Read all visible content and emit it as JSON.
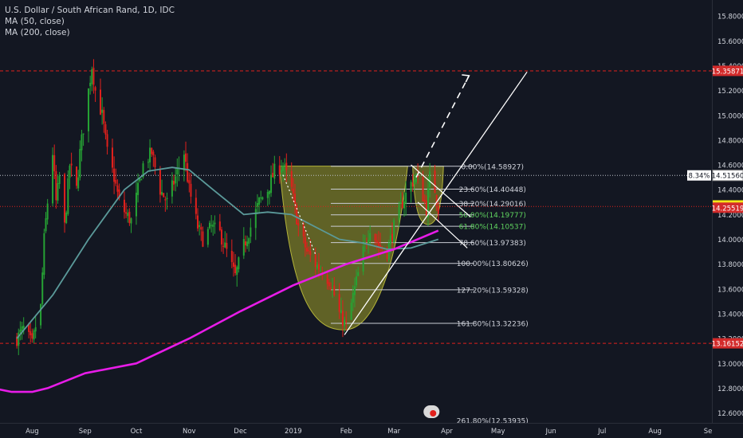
{
  "legend": {
    "symbol": "U.S. Dollar / South African Rand, 1D, IDC",
    "ma50": "MA (50, close)",
    "ma200": "MA (200, close)"
  },
  "colors": {
    "background": "#131722",
    "up": "#26a334",
    "down": "#e0201c",
    "ma50": "#5b9a9a",
    "ma200": "#e81ce8",
    "cup_fill": "#8a8a2a",
    "red_dashed": "#e0201c",
    "text": "#d1d4dc"
  },
  "chart_data": {
    "type": "candlestick",
    "title": "U.S. Dollar / South African Rand, 1D, IDC",
    "ylim": [
      12.52,
      15.93
    ],
    "y_ticks": [
      "15.80000",
      "15.60000",
      "15.40000",
      "15.20000",
      "15.00000",
      "14.80000",
      "14.60000",
      "14.40000",
      "14.20000",
      "14.00000",
      "13.80000",
      "13.60000",
      "13.40000",
      "13.20000",
      "13.00000",
      "12.80000",
      "12.60000"
    ],
    "x_ticks": [
      "Aug",
      "Sep",
      "Oct",
      "Nov",
      "Dec",
      "2019",
      "Feb",
      "Mar",
      "Apr",
      "May",
      "Jun",
      "Jul",
      "Aug",
      "Se"
    ],
    "close_series": [
      [
        "2018-07-23",
        13.2
      ],
      [
        "2018-07-27",
        13.28
      ],
      [
        "2018-08-01",
        13.15
      ],
      [
        "2018-08-03",
        13.3
      ],
      [
        "2018-08-06",
        13.45
      ],
      [
        "2018-08-08",
        14.0
      ],
      [
        "2018-08-10",
        14.3
      ],
      [
        "2018-08-13",
        14.7
      ],
      [
        "2018-08-15",
        14.3
      ],
      [
        "2018-08-17",
        14.5
      ],
      [
        "2018-08-20",
        14.1
      ],
      [
        "2018-08-23",
        14.6
      ],
      [
        "2018-08-27",
        14.4
      ],
      [
        "2018-08-29",
        14.7
      ],
      [
        "2018-09-03",
        15.2
      ],
      [
        "2018-09-05",
        15.4
      ],
      [
        "2018-09-07",
        15.2
      ],
      [
        "2018-09-11",
        15.0
      ],
      [
        "2018-09-14",
        14.7
      ],
      [
        "2018-09-18",
        14.5
      ],
      [
        "2018-09-21",
        14.3
      ],
      [
        "2018-09-25",
        14.2
      ],
      [
        "2018-09-28",
        14.15
      ],
      [
        "2018-10-02",
        14.4
      ],
      [
        "2018-10-05",
        14.6
      ],
      [
        "2018-10-10",
        14.7
      ],
      [
        "2018-10-15",
        14.4
      ],
      [
        "2018-10-19",
        14.3
      ],
      [
        "2018-10-24",
        14.5
      ],
      [
        "2018-10-29",
        14.7
      ],
      [
        "2018-11-01",
        14.4
      ],
      [
        "2018-11-06",
        14.1
      ],
      [
        "2018-11-09",
        14.0
      ],
      [
        "2018-11-14",
        14.1
      ],
      [
        "2018-11-19",
        14.05
      ],
      [
        "2018-11-23",
        13.9
      ],
      [
        "2018-11-28",
        13.7
      ],
      [
        "2018-12-03",
        13.95
      ],
      [
        "2018-12-07",
        14.1
      ],
      [
        "2018-12-12",
        14.3
      ],
      [
        "2018-12-17",
        14.4
      ],
      [
        "2018-12-21",
        14.55
      ],
      [
        "2018-12-26",
        14.6
      ],
      [
        "2018-12-31",
        14.4
      ],
      [
        "2019-01-04",
        14.1
      ],
      [
        "2019-01-09",
        13.9
      ],
      [
        "2019-01-14",
        13.8
      ],
      [
        "2019-01-18",
        13.75
      ],
      [
        "2019-01-23",
        13.65
      ],
      [
        "2019-01-28",
        13.4
      ],
      [
        "2019-02-01",
        13.3
      ],
      [
        "2019-02-06",
        13.6
      ],
      [
        "2019-02-11",
        13.9
      ],
      [
        "2019-02-15",
        14.1
      ],
      [
        "2019-02-20",
        13.95
      ],
      [
        "2019-02-25",
        13.9
      ],
      [
        "2019-03-01",
        14.1
      ],
      [
        "2019-03-06",
        14.3
      ],
      [
        "2019-03-11",
        14.45
      ],
      [
        "2019-03-14",
        14.5
      ],
      [
        "2019-03-18",
        14.35
      ],
      [
        "2019-03-20",
        14.25
      ],
      [
        "2019-03-22",
        14.5
      ],
      [
        "2019-03-25",
        14.4
      ],
      [
        "2019-03-27",
        14.25
      ]
    ],
    "ma50_series": [
      [
        "2018-07-23",
        13.2
      ],
      [
        "2018-08-13",
        13.55
      ],
      [
        "2018-09-03",
        14.0
      ],
      [
        "2018-09-24",
        14.4
      ],
      [
        "2018-10-08",
        14.55
      ],
      [
        "2018-10-22",
        14.58
      ],
      [
        "2018-11-01",
        14.56
      ],
      [
        "2018-11-15",
        14.4
      ],
      [
        "2018-12-03",
        14.2
      ],
      [
        "2018-12-17",
        14.22
      ],
      [
        "2018-12-31",
        14.2
      ],
      [
        "2019-01-14",
        14.1
      ],
      [
        "2019-01-28",
        14.0
      ],
      [
        "2019-02-11",
        13.97
      ],
      [
        "2019-02-25",
        13.92
      ],
      [
        "2019-03-11",
        13.93
      ],
      [
        "2019-03-27",
        14.0
      ]
    ],
    "ma200_series": [
      [
        "2018-07-09",
        12.8
      ],
      [
        "2018-07-20",
        12.77
      ],
      [
        "2018-08-01",
        12.77
      ],
      [
        "2018-08-10",
        12.8
      ],
      [
        "2018-09-01",
        12.92
      ],
      [
        "2018-10-01",
        13.0
      ],
      [
        "2018-11-01",
        13.2
      ],
      [
        "2018-12-01",
        13.42
      ],
      [
        "2019-01-01",
        13.63
      ],
      [
        "2019-02-01",
        13.8
      ],
      [
        "2019-03-01",
        13.92
      ],
      [
        "2019-03-27",
        14.07
      ]
    ],
    "fib_levels": [
      {
        "label": "0.00%(14.58927)",
        "value": 14.58927
      },
      {
        "label": "23.60%(14.40448)",
        "value": 14.40448
      },
      {
        "label": "38.20%(14.29016)",
        "value": 14.29016
      },
      {
        "label": "50.00%(14.19777)",
        "value": 14.19777
      },
      {
        "label": "61.80%(14.10537)",
        "value": 14.10537
      },
      {
        "label": "78.60%(13.97383)",
        "value": 13.97383
      },
      {
        "label": "100.00%(13.80626)",
        "value": 13.80626
      },
      {
        "label": "127.20%(13.59328)",
        "value": 13.59328
      },
      {
        "label": "161.80%(13.32236)",
        "value": 13.32236
      },
      {
        "label": "261.80%(12.53935)",
        "value": 12.53935
      }
    ],
    "price_labels": [
      {
        "text": "15.35871",
        "value": 15.35871,
        "kind": "red"
      },
      {
        "text": "14.51560",
        "value": 14.5156,
        "kind": "box"
      },
      {
        "text": "14.27359",
        "value": 14.27359,
        "kind": "box-yellow"
      },
      {
        "text": "14.25519",
        "value": 14.25519,
        "kind": "red"
      },
      {
        "text": "13.16152",
        "value": 13.16152,
        "kind": "red"
      }
    ],
    "pct_label": "8.34%",
    "horizontal_red_dashed": [
      15.35871,
      13.16152
    ],
    "dotted_price_line": 14.5156,
    "grid": false,
    "legend_position": "top-left"
  }
}
